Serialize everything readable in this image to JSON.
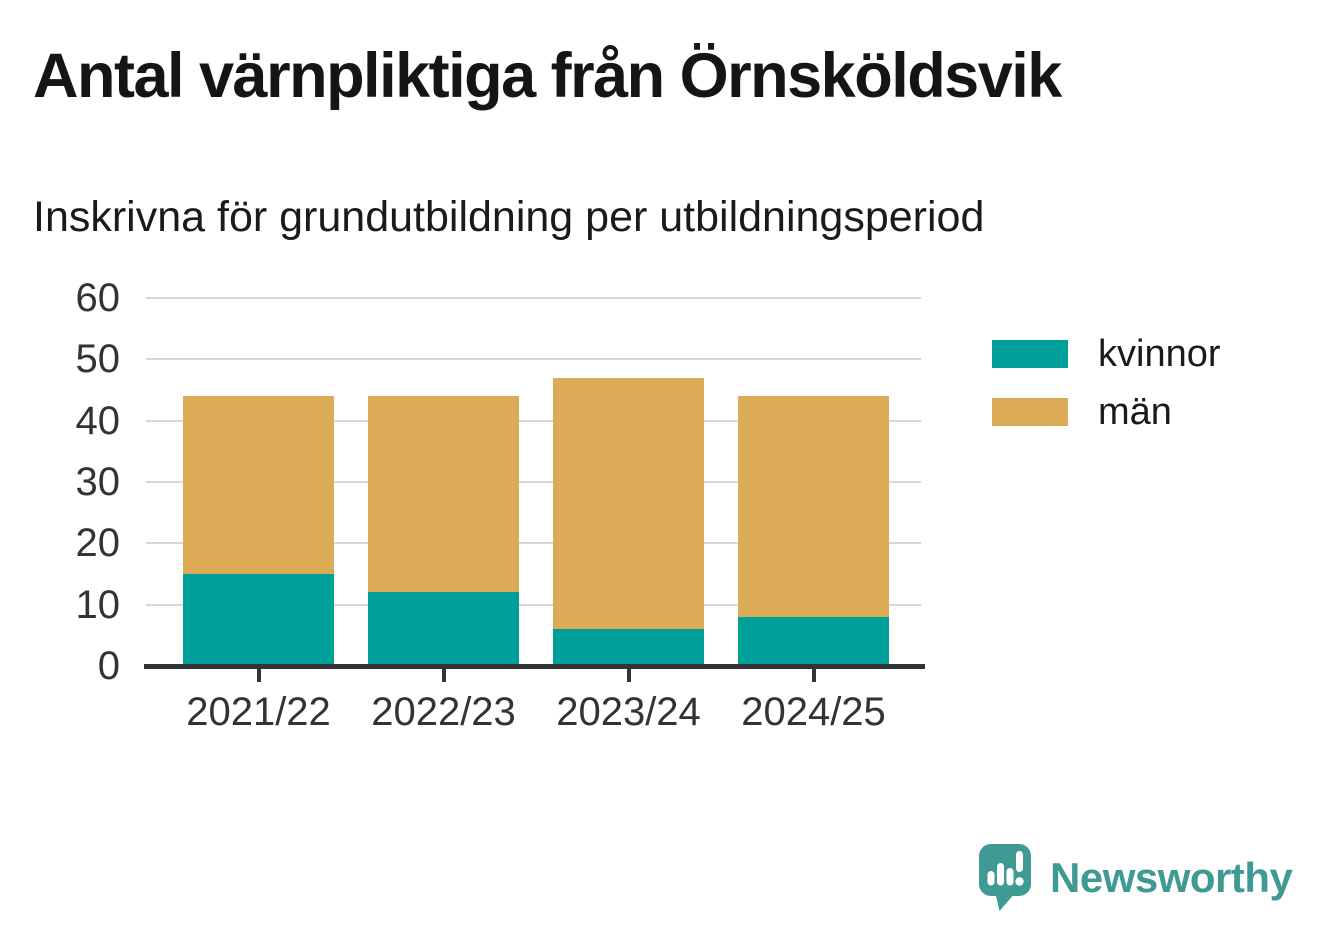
{
  "header": {
    "title": "Antal värnpliktiga från Örnsköldsvik",
    "subtitle": "Inskrivna för grundutbildning per utbildningsperiod"
  },
  "chart_data": {
    "type": "bar",
    "stacked": true,
    "title": "Antal värnpliktiga från Örnsköldsvik",
    "subtitle": "Inskrivna för grundutbildning per utbildningsperiod",
    "categories": [
      "2021/22",
      "2022/23",
      "2023/24",
      "2024/25"
    ],
    "series": [
      {
        "name": "kvinnor",
        "color": "#00A09A",
        "values": [
          15,
          12,
          6,
          8
        ]
      },
      {
        "name": "män",
        "color": "#DBAB58",
        "values": [
          29,
          32,
          41,
          36
        ]
      }
    ],
    "totals": [
      44,
      44,
      47,
      44
    ],
    "xlabel": "",
    "ylabel": "",
    "ylim": [
      0,
      60
    ],
    "yticks": [
      0,
      10,
      20,
      30,
      40,
      50,
      60
    ],
    "grid": true,
    "legend_position": "right-top"
  },
  "colors": {
    "grid": "#D8D8D8",
    "axis": "#333333",
    "tick_label": "#333333",
    "title_text": "#151515"
  },
  "footer": {
    "brand": "Newsworthy",
    "brand_color": "#3E9A93",
    "logo_icon": "speech-bubble-bar-chart-exclamation"
  }
}
